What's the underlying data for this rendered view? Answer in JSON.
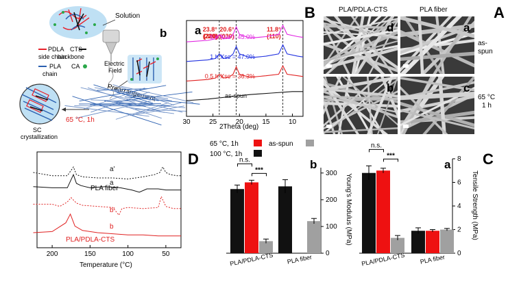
{
  "figure_panels": {
    "A": "A",
    "B": "B",
    "C": "C",
    "D": "D"
  },
  "schematic": {
    "letter": "b",
    "solution": "Solution",
    "electric_field": "Electric Field",
    "prearrangement": "Prearrangement",
    "anneal": "65 °C, 1h",
    "sc": "SC",
    "crystallization": "crystallization",
    "legend": {
      "pdla": "PDLA",
      "side_chain": "side chain",
      "cts": "CTS",
      "backbone": "backbone",
      "pla": "PLA",
      "chain": "chain",
      "ca": "CA"
    },
    "colors": {
      "pdla": "#e8202a",
      "pla": "#2a5fb0",
      "cts": "#111111",
      "ca": "#2aa84a"
    }
  },
  "sem": {
    "col_pla": "PLA fiber",
    "col_pdla": "PLA/PDLA-CTS",
    "row_asspun_1": "as-",
    "row_asspun_2": "spun",
    "row_65_1": "65 °C",
    "row_65_2": "1 h",
    "tiles": [
      "a",
      "d",
      "c",
      "b"
    ]
  },
  "xrd": {
    "letter": "a",
    "xlabel": "2Theta (deg)",
    "peaks": [
      {
        "l1": "11.8°",
        "l2": "(110)"
      },
      {
        "l1": "20.6°",
        "l2": "(300)/(030)"
      },
      {
        "l1": "23.8°",
        "l2": "(220)"
      }
    ],
    "chart_data": {
      "type": "line",
      "xlabel": "2Theta (deg)",
      "xlim": [
        30,
        8
      ],
      "xticks": [
        30,
        25,
        20,
        15,
        10
      ],
      "series": [
        {
          "name": "6 h",
          "label": "6 h   Xsc = 45.0%",
          "color": "#e020e0",
          "x": [
            30,
            26,
            24.5,
            23.8,
            23.1,
            22,
            21.2,
            20.6,
            20,
            18,
            15,
            12.6,
            11.8,
            11,
            9,
            8
          ],
          "y": [
            0.88,
            0.9,
            0.92,
            0.98,
            0.92,
            0.93,
            0.98,
            1.08,
            0.98,
            0.93,
            0.95,
            0.98,
            1.1,
            0.98,
            0.95,
            0.94
          ]
        },
        {
          "name": "1 h",
          "label": "1 h   Xsc = 47.0%",
          "color": "#2030e0",
          "x": [
            30,
            26,
            24.5,
            23.8,
            23.1,
            22,
            21.2,
            20.6,
            20,
            18,
            15,
            12.6,
            11.8,
            11,
            9,
            8
          ],
          "y": [
            0.62,
            0.64,
            0.66,
            0.72,
            0.66,
            0.67,
            0.72,
            0.82,
            0.72,
            0.67,
            0.69,
            0.72,
            0.84,
            0.72,
            0.69,
            0.68
          ]
        },
        {
          "name": "0.5 h",
          "label": "0.5 h   Xsc = 36.3%",
          "color": "#e02020",
          "x": [
            30,
            26,
            24.5,
            23.8,
            23.1,
            22,
            21.2,
            20.6,
            20,
            18,
            15,
            12.6,
            11.8,
            11,
            9,
            8
          ],
          "y": [
            0.36,
            0.38,
            0.4,
            0.45,
            0.4,
            0.41,
            0.45,
            0.55,
            0.45,
            0.41,
            0.43,
            0.45,
            0.56,
            0.45,
            0.43,
            0.42
          ]
        },
        {
          "name": "as-spun",
          "label": "as-spun",
          "color": "#111111",
          "x": [
            30,
            26,
            22,
            18,
            14,
            10,
            8
          ],
          "y": [
            0.1,
            0.12,
            0.15,
            0.18,
            0.2,
            0.22,
            0.22
          ]
        }
      ],
      "peak_positions": [
        11.8,
        20.6,
        23.8
      ]
    }
  },
  "dsc": {
    "xlabel": "Temperature (°C)",
    "series_labels": {
      "pla": "PLA fiber",
      "pdla": "PLA/PDLA-CTS"
    },
    "curve_labels": [
      "a'",
      "a",
      "b'",
      "b"
    ],
    "chart_data": {
      "type": "line",
      "xlabel": "Temperature (°C)",
      "xlim": [
        220,
        30
      ],
      "xticks": [
        200,
        150,
        100,
        50
      ],
      "series": [
        {
          "name": "a'",
          "dash": true,
          "color": "#111111",
          "x": [
            225,
            200,
            180,
            172,
            168,
            160,
            140,
            120,
            100,
            80,
            65,
            58,
            54,
            50,
            44,
            35,
            30
          ],
          "y": [
            3.25,
            3.1,
            3.1,
            3.5,
            3.15,
            3.05,
            3.0,
            3.0,
            2.95,
            3.05,
            3.15,
            3.25,
            3.5,
            3.25,
            3.15,
            3.1,
            3.1
          ]
        },
        {
          "name": "a",
          "dash": false,
          "color": "#111111",
          "x": [
            225,
            200,
            180,
            172,
            168,
            162,
            150,
            130,
            110,
            95,
            85,
            75,
            60,
            50,
            40,
            30
          ],
          "y": [
            2.6,
            2.55,
            2.55,
            3.15,
            2.75,
            2.65,
            2.55,
            2.6,
            2.55,
            2.45,
            2.35,
            2.5,
            2.5,
            2.45,
            2.45,
            2.45
          ]
        },
        {
          "name": "b'",
          "dash": true,
          "color": "#e02020",
          "x": [
            225,
            200,
            190,
            180,
            175,
            168,
            160,
            140,
            120,
            112,
            108,
            100,
            80,
            60,
            56,
            54,
            50,
            40,
            30
          ],
          "y": [
            1.8,
            1.8,
            1.7,
            1.9,
            2.1,
            1.85,
            1.75,
            1.7,
            1.65,
            1.3,
            1.6,
            1.65,
            1.6,
            1.65,
            2.15,
            2.0,
            1.7,
            1.6,
            1.6
          ]
        },
        {
          "name": "b",
          "dash": false,
          "color": "#e02020",
          "x": [
            225,
            200,
            182,
            176,
            170,
            160,
            140,
            120,
            100,
            80,
            60,
            40,
            30
          ],
          "y": [
            0.5,
            0.55,
            0.95,
            1.35,
            0.8,
            0.6,
            0.5,
            0.45,
            0.4,
            0.4,
            0.35,
            0.35,
            0.35
          ]
        }
      ]
    }
  },
  "bars": {
    "legend": {
      "c65": "65 °C, 1h",
      "c100": "100 °C, 1h",
      "asspun": "as-spun"
    },
    "significance": {
      "ns": "n.s.",
      "star": "***"
    },
    "colors": {
      "c100": "#111111",
      "c65": "#ee1111",
      "asspun": "#a0a0a0"
    },
    "tensile": {
      "letter": "a",
      "ylabel": "Tensile Strength (MPa)",
      "chart_data": {
        "type": "bar",
        "categories": [
          "PLA/PDLA-CTS",
          "PLA fiber"
        ],
        "series": [
          {
            "name": "100 °C, 1h",
            "values": [
              6.8,
              1.9
            ],
            "err": [
              0.6,
              0.25
            ]
          },
          {
            "name": "65 °C, 1h",
            "values": [
              7.0,
              1.9
            ],
            "err": [
              0.2,
              0.1
            ]
          },
          {
            "name": "as-spun",
            "values": [
              1.3,
              2.0
            ],
            "err": [
              0.2,
              0.1
            ]
          }
        ],
        "ylim": [
          0,
          8
        ],
        "yticks": [
          0,
          2,
          4,
          6,
          8
        ],
        "ylabel": "Tensile Strength (MPa)"
      }
    },
    "modulus": {
      "letter": "b",
      "ylabel": "Young's Modulus (MPa)",
      "chart_data": {
        "type": "bar",
        "categories": [
          "PLA/PDLA-CTS",
          "PLA fiber"
        ],
        "series": [
          {
            "name": "100 °C, 1h",
            "values": [
              240,
              250
            ],
            "err": [
              15,
              25
            ]
          },
          {
            "name": "65 °C, 1h",
            "values": [
              265,
              null
            ],
            "err": [
              8,
              null
            ]
          },
          {
            "name": "as-spun",
            "values": [
              45,
              120
            ],
            "err": [
              8,
              10
            ]
          }
        ],
        "ylim": [
          0,
          320
        ],
        "yticks": [
          0,
          100,
          200,
          300
        ],
        "ylabel": "Young's Modulus (MPa)"
      }
    }
  }
}
